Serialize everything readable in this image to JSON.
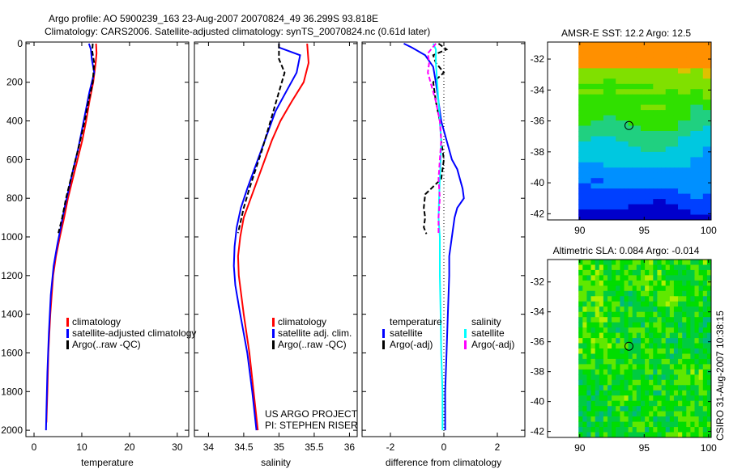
{
  "title_line1": "Argo profile: AO 5900239_163 23-Aug-2007 20070824_49 36.299S 93.818E",
  "title_line2": "Climatology: CARS2006. Satellite-adjusted climatology: synTS_20070824.nc (0.61d later)",
  "credit": [
    "US ARGO PROJECT",
    "PI: STEPHEN RISER"
  ],
  "stamp": "CSIRO 31-Aug-2007 10:38:15",
  "colors": {
    "clim": "#ff0000",
    "sat": "#0000ff",
    "argo": "#000000",
    "sal_sat": "#00ffff",
    "sal_argo": "#ff00ff"
  },
  "chart_data": [
    {
      "type": "line",
      "xlabel": "temperature",
      "ylabel": "",
      "xlim": [
        -1.7,
        32.4
      ],
      "ylim": [
        2033,
        -8
      ],
      "xticks": [
        "0",
        "10",
        "20",
        "30"
      ],
      "xtick_vals": [
        0,
        10,
        20,
        30
      ],
      "yticks": [
        "0",
        "200",
        "400",
        "600",
        "800",
        "1000",
        "1200",
        "1400",
        "1600",
        "1800",
        "2000"
      ],
      "legend": [
        "climatology",
        "satellite-adjusted climatology",
        "Argo(..raw -QC)"
      ],
      "series": [
        {
          "name": "climatology",
          "color": "#ff0000",
          "depth": [
            0,
            50,
            100,
            200,
            300,
            400,
            500,
            600,
            700,
            800,
            900,
            1000,
            1100,
            1200,
            1400,
            1600,
            1800,
            1960
          ],
          "values": [
            13,
            13.1,
            12.9,
            12.4,
            11.6,
            10.9,
            10.1,
            9.1,
            8.1,
            7.1,
            6.3,
            5.4,
            4.6,
            4.0,
            3.4,
            3.0,
            2.8,
            2.6
          ]
        },
        {
          "name": "satellite-adjusted climatology",
          "color": "#0000ff",
          "depth": [
            0,
            30,
            80,
            150,
            250,
            350,
            450,
            550,
            650,
            750,
            850,
            950,
            1050,
            1150,
            1300,
            1500,
            1700,
            1900,
            2000
          ],
          "values": [
            11.5,
            11.9,
            12.1,
            12.6,
            11.6,
            10.8,
            10.0,
            9.2,
            8.2,
            7.3,
            6.4,
            5.6,
            4.8,
            4.1,
            3.5,
            3.1,
            2.8,
            2.6,
            2.5
          ]
        },
        {
          "name": "Argo(..raw -QC)",
          "color": "#000000",
          "dash": "6,3",
          "depth": [
            0,
            40,
            100,
            200,
            300,
            400,
            500,
            600,
            700,
            800,
            900,
            980
          ],
          "values": [
            12.3,
            12.2,
            12.6,
            12.3,
            11.4,
            10.6,
            9.7,
            8.7,
            7.7,
            6.7,
            5.9,
            5.1
          ]
        }
      ]
    },
    {
      "type": "line",
      "xlabel": "salinity",
      "xlim": [
        33.8,
        36.11
      ],
      "ylim": [
        2033,
        -8
      ],
      "xticks": [
        "34",
        "34.5",
        "35",
        "35.5",
        "36"
      ],
      "xtick_vals": [
        34,
        34.5,
        35,
        35.5,
        36
      ],
      "legend": [
        "climatology",
        "satellite adj. clim.",
        "Argo(..raw -QC)"
      ],
      "series": [
        {
          "name": "climatology",
          "color": "#ff0000",
          "depth": [
            0,
            100,
            200,
            300,
            400,
            500,
            600,
            700,
            800,
            900,
            1000,
            1100,
            1200,
            1400,
            1600,
            1800,
            2000
          ],
          "values": [
            35.4,
            35.42,
            35.35,
            35.18,
            35.02,
            34.9,
            34.8,
            34.7,
            34.6,
            34.5,
            34.45,
            34.42,
            34.43,
            34.5,
            34.58,
            34.64,
            34.7
          ]
        },
        {
          "name": "satellite adj. clim.",
          "color": "#0000ff",
          "depth": [
            0,
            20,
            60,
            150,
            250,
            350,
            450,
            550,
            650,
            750,
            850,
            950,
            1050,
            1150,
            1250,
            1400,
            1600,
            1800,
            2000
          ],
          "values": [
            35.0,
            35.0,
            35.3,
            35.25,
            35.1,
            34.95,
            34.85,
            34.75,
            34.65,
            34.55,
            34.46,
            34.4,
            34.37,
            34.36,
            34.38,
            34.45,
            34.55,
            34.62,
            34.68
          ]
        },
        {
          "name": "Argo(..raw -QC)",
          "color": "#000000",
          "dash": "6,3",
          "depth": [
            0,
            80,
            150,
            250,
            350,
            450,
            550,
            650,
            750,
            850,
            980
          ],
          "values": [
            35.0,
            35.0,
            35.08,
            35.0,
            34.92,
            34.84,
            34.76,
            34.67,
            34.58,
            34.5,
            34.42
          ]
        }
      ]
    },
    {
      "type": "line",
      "xlabel": "difference from climatology",
      "xlim": [
        -3.06,
        3.03
      ],
      "ylim": [
        2033,
        -8
      ],
      "xticks": [
        "-2",
        "0",
        "2"
      ],
      "xtick_vals": [
        -2,
        0,
        2
      ],
      "legend": {
        "temperature": "temperature",
        "salinity": "salinity",
        "t_sat": "satellite",
        "t_argo": "Argo(-adj)",
        "s_sat": "satellite",
        "s_argo": "Argo(-adj)"
      },
      "series": [
        {
          "name": "temperature satellite",
          "color": "#0000ff",
          "depth": [
            0,
            20,
            60,
            120,
            200,
            300,
            400,
            500,
            600,
            650,
            700,
            750,
            800,
            850,
            900,
            1000,
            1100,
            1200,
            1400,
            1600,
            1800,
            2000
          ],
          "values": [
            -1.5,
            -1.2,
            -0.7,
            -0.4,
            -0.3,
            -0.2,
            -0.1,
            0.1,
            0.3,
            0.5,
            0.6,
            0.7,
            0.75,
            0.5,
            0.4,
            0.3,
            0.2,
            0.2,
            0.15,
            0.1,
            0.05,
            0.05
          ]
        },
        {
          "name": "temperature Argo(-adj)",
          "color": "#000000",
          "dash": "6,3",
          "depth": [
            0,
            30,
            60,
            100,
            150,
            200,
            300,
            400,
            500,
            600,
            700,
            780,
            850,
            900,
            950,
            985
          ],
          "values": [
            -0.2,
            0.1,
            -0.4,
            -0.3,
            0.0,
            -0.4,
            -0.3,
            -0.15,
            -0.1,
            0.0,
            -0.1,
            -0.7,
            -0.75,
            -0.7,
            -0.75,
            -0.65
          ]
        },
        {
          "name": "salinity satellite",
          "color": "#00ffff",
          "depth": [
            0,
            30,
            100,
            200,
            300,
            400,
            500,
            600,
            700,
            800,
            900,
            1000,
            1200,
            1400,
            1600,
            1800,
            2000
          ],
          "values": [
            -0.4,
            -0.3,
            -0.3,
            -0.25,
            -0.2,
            -0.15,
            -0.1,
            -0.12,
            -0.15,
            -0.18,
            -0.2,
            -0.15,
            -0.15,
            -0.12,
            -0.1,
            -0.05,
            -0.05
          ]
        },
        {
          "name": "salinity Argo(-adj)",
          "color": "#ff00ff",
          "dash": "6,3",
          "depth": [
            0,
            50,
            100,
            150,
            200,
            300,
            400,
            500,
            600,
            700,
            800,
            900,
            980
          ],
          "values": [
            -0.3,
            -0.6,
            -0.55,
            -0.6,
            -0.5,
            -0.3,
            -0.15,
            -0.1,
            -0.15,
            -0.2,
            -0.15,
            -0.2,
            -0.2
          ]
        }
      ]
    },
    {
      "type": "heatmap",
      "title": "AMSR-E SST: 12.2 Argo: 12.5",
      "xlim": [
        87.5,
        100.2
      ],
      "ylim": [
        -42.4,
        -30.9
      ],
      "xticks": [
        "90",
        "95",
        "100"
      ],
      "xtick_vals": [
        90,
        95,
        100
      ],
      "yticks": [
        "-32",
        "-34",
        "-36",
        "-38",
        "-40",
        "-42"
      ],
      "ytick_vals": [
        -32,
        -34,
        -36,
        -38,
        -40,
        -42
      ],
      "marker": {
        "lon": 93.818,
        "lat": -36.299
      },
      "data_lon_range": [
        89.9,
        100.2
      ]
    },
    {
      "type": "heatmap",
      "title": "Altimetric SLA: 0.084 Argo: -0.014",
      "xlim": [
        87.5,
        100.2
      ],
      "ylim": [
        -42.4,
        -30.5
      ],
      "xticks": [
        "90",
        "95",
        "100"
      ],
      "xtick_vals": [
        90,
        95,
        100
      ],
      "yticks": [
        "-32",
        "-34",
        "-36",
        "-38",
        "-40",
        "-42"
      ],
      "ytick_vals": [
        -32,
        -34,
        -36,
        -38,
        -40,
        -42
      ],
      "marker": {
        "lon": 93.818,
        "lat": -36.299
      },
      "data_lon_range": [
        89.9,
        100.2
      ]
    }
  ]
}
